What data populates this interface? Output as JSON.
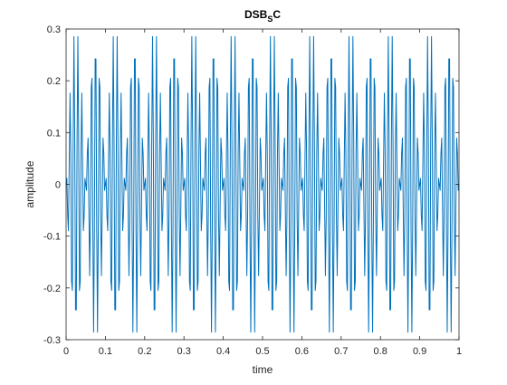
{
  "chart_data": {
    "type": "line",
    "title": "DSB_SC",
    "title_parts": {
      "main": "DSB",
      "subscript": "S",
      "suffix": "C"
    },
    "xlabel": "time",
    "ylabel": "amplitude",
    "xlim": [
      0,
      1
    ],
    "ylim": [
      -0.3,
      0.3
    ],
    "x_ticks": [
      0,
      0.1,
      0.2,
      0.3,
      0.4,
      0.5,
      0.6,
      0.7,
      0.8,
      0.9,
      1
    ],
    "x_tick_labels": [
      "0",
      "0.1",
      "0.2",
      "0.3",
      "0.4",
      "0.5",
      "0.6",
      "0.7",
      "0.8",
      "0.9",
      "1"
    ],
    "y_ticks": [
      -0.3,
      -0.2,
      -0.1,
      0,
      0.1,
      0.2,
      0.3
    ],
    "y_tick_labels": [
      "-0.3",
      "-0.2",
      "-0.1",
      "0",
      "0.1",
      "0.2",
      "0.3"
    ],
    "grid": false,
    "box": true,
    "series": [
      {
        "color": "#0072BD",
        "sample_step": 0.002,
        "signal": "0.3*sin(2*pi*10*t)*cos(2*pi*100*t)",
        "envelope_frequency_hz": 10,
        "carrier_frequency_hz": 100,
        "peak_amplitude": 0.3
      }
    ]
  }
}
